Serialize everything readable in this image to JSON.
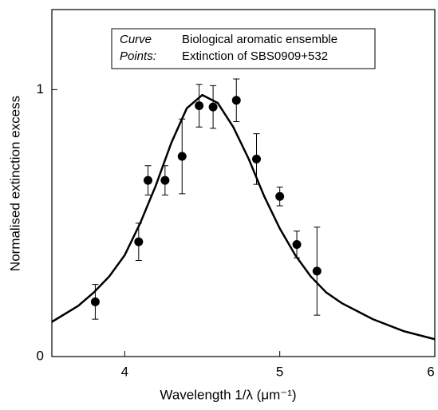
{
  "chart_data": {
    "type": "line-scatter",
    "x_label": "Wavelength 1/λ (μm⁻¹)",
    "y_label": "Normalised extinction excess",
    "xlim": [
      3.53,
      6
    ],
    "ylim": [
      0,
      1.3
    ],
    "xticks": [
      4,
      5,
      6
    ],
    "yticks": [
      0,
      1
    ],
    "series": [
      {
        "name": "Biological aromatic ensemble",
        "legend_label": "Curve",
        "kind": "line",
        "color": "#000000",
        "x": [
          3.53,
          3.7,
          3.8,
          3.9,
          4.0,
          4.1,
          4.2,
          4.3,
          4.4,
          4.5,
          4.6,
          4.7,
          4.8,
          4.9,
          5.0,
          5.1,
          5.2,
          5.3,
          5.4,
          5.6,
          5.8,
          6.0
        ],
        "values": [
          0.13,
          0.19,
          0.24,
          0.3,
          0.38,
          0.5,
          0.64,
          0.8,
          0.93,
          0.98,
          0.95,
          0.86,
          0.74,
          0.6,
          0.48,
          0.38,
          0.3,
          0.24,
          0.2,
          0.14,
          0.095,
          0.065
        ]
      },
      {
        "name": "Extinction of SBS0909+532",
        "legend_label": "Points:",
        "kind": "points",
        "color": "#000000",
        "x": [
          3.81,
          4.09,
          4.15,
          4.26,
          4.37,
          4.48,
          4.57,
          4.72,
          4.85,
          5.0,
          5.11,
          5.24
        ],
        "values": [
          0.205,
          0.43,
          0.66,
          0.66,
          0.75,
          0.94,
          0.935,
          0.96,
          0.74,
          0.6,
          0.42,
          0.32
        ],
        "errors": [
          0.065,
          0.07,
          0.055,
          0.055,
          0.14,
          0.08,
          0.08,
          0.08,
          0.095,
          0.035,
          0.05,
          0.165
        ]
      }
    ]
  }
}
